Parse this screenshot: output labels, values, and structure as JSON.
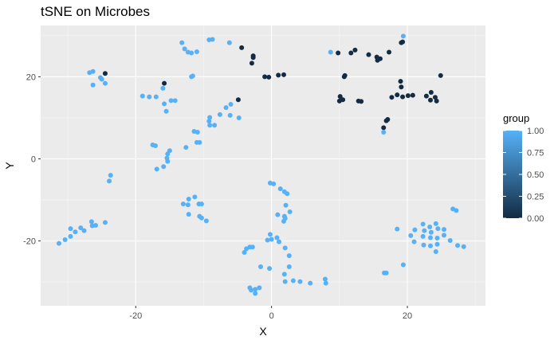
{
  "chart_data": {
    "type": "scatter",
    "title": "tSNE on Microbes",
    "xlabel": "X",
    "ylabel": "Y",
    "xlim": [
      -34,
      31.5
    ],
    "ylim": [
      -35.8,
      32.5
    ],
    "x_ticks": [
      -20,
      0,
      20
    ],
    "y_ticks": [
      -20,
      0,
      20
    ],
    "x_tick_labels": [
      "-20",
      "0",
      "20"
    ],
    "y_tick_labels": [
      "-20",
      "0",
      "20"
    ],
    "grid": true,
    "legend": {
      "title": "group",
      "placement": "right",
      "type": "colorbar",
      "breaks": [
        1.0,
        0.75,
        0.5,
        0.25,
        0.0
      ],
      "labels": [
        "1.00",
        "0.75",
        "0.50",
        "0.25",
        "0.00"
      ],
      "low_color": "#132B43",
      "high_color": "#56B1F7"
    },
    "points": [
      {
        "x": -26.8,
        "y": 21.0,
        "group": 1
      },
      {
        "x": -26.3,
        "y": 21.3,
        "group": 1
      },
      {
        "x": -25.2,
        "y": 19.8,
        "group": 1
      },
      {
        "x": -25.0,
        "y": 19.4,
        "group": 1
      },
      {
        "x": -24.5,
        "y": 20.8,
        "group": 0
      },
      {
        "x": -26.3,
        "y": 18.0,
        "group": 1
      },
      {
        "x": -24.5,
        "y": 18.4,
        "group": 1
      },
      {
        "x": -19.0,
        "y": 15.3,
        "group": 1
      },
      {
        "x": -18.0,
        "y": 15.1,
        "group": 1
      },
      {
        "x": -17.0,
        "y": 15.1,
        "group": 1
      },
      {
        "x": -15.8,
        "y": 18.4,
        "group": 0
      },
      {
        "x": -16.0,
        "y": 17.2,
        "group": 1
      },
      {
        "x": -14.8,
        "y": 14.2,
        "group": 1
      },
      {
        "x": -14.2,
        "y": 14.2,
        "group": 1
      },
      {
        "x": -15.8,
        "y": 13.4,
        "group": 1
      },
      {
        "x": -15.5,
        "y": 11.6,
        "group": 1
      },
      {
        "x": -13.2,
        "y": 28.3,
        "group": 1
      },
      {
        "x": -12.8,
        "y": 26.8,
        "group": 1
      },
      {
        "x": -12.3,
        "y": 26.0,
        "group": 1
      },
      {
        "x": -11.8,
        "y": 25.8,
        "group": 1
      },
      {
        "x": -11.0,
        "y": 26.1,
        "group": 1
      },
      {
        "x": -9.2,
        "y": 29.0,
        "group": 1
      },
      {
        "x": -8.7,
        "y": 29.1,
        "group": 1
      },
      {
        "x": -6.2,
        "y": 28.3,
        "group": 1
      },
      {
        "x": -11.8,
        "y": 20.0,
        "group": 1
      },
      {
        "x": -11.6,
        "y": 20.2,
        "group": 1
      },
      {
        "x": -4.4,
        "y": 27.1,
        "group": 0
      },
      {
        "x": -2.7,
        "y": 25.1,
        "group": 0
      },
      {
        "x": -2.7,
        "y": 24.7,
        "group": 0
      },
      {
        "x": -2.9,
        "y": 23.3,
        "group": 0
      },
      {
        "x": -1.0,
        "y": 20.0,
        "group": 0
      },
      {
        "x": -0.4,
        "y": 19.9,
        "group": 0
      },
      {
        "x": 1.0,
        "y": 20.4,
        "group": 0
      },
      {
        "x": 1.8,
        "y": 20.5,
        "group": 0
      },
      {
        "x": -4.9,
        "y": 14.4,
        "group": 0
      },
      {
        "x": -6.0,
        "y": 13.3,
        "group": 1
      },
      {
        "x": -6.7,
        "y": 12.5,
        "group": 1
      },
      {
        "x": -7.6,
        "y": 10.8,
        "group": 1
      },
      {
        "x": -6.1,
        "y": 10.6,
        "group": 1
      },
      {
        "x": -4.8,
        "y": 10.0,
        "group": 1
      },
      {
        "x": -9.1,
        "y": 10.1,
        "group": 1
      },
      {
        "x": -9.2,
        "y": 9.2,
        "group": 1
      },
      {
        "x": -9.1,
        "y": 8.2,
        "group": 1
      },
      {
        "x": -8.4,
        "y": 8.2,
        "group": 1
      },
      {
        "x": -11.4,
        "y": 6.7,
        "group": 1
      },
      {
        "x": -10.9,
        "y": 6.5,
        "group": 1
      },
      {
        "x": -11.0,
        "y": 4.0,
        "group": 1
      },
      {
        "x": -10.6,
        "y": 4.0,
        "group": 1
      },
      {
        "x": -12.6,
        "y": 2.8,
        "group": 1
      },
      {
        "x": -17.5,
        "y": 3.4,
        "group": 1
      },
      {
        "x": -17.1,
        "y": 3.2,
        "group": 1
      },
      {
        "x": -15.0,
        "y": 2.0,
        "group": 1
      },
      {
        "x": -15.3,
        "y": 1.2,
        "group": 1
      },
      {
        "x": -15.4,
        "y": 0.2,
        "group": 1
      },
      {
        "x": -15.3,
        "y": -0.6,
        "group": 1
      },
      {
        "x": -15.9,
        "y": -1.9,
        "group": 1
      },
      {
        "x": -16.9,
        "y": -2.5,
        "group": 1
      },
      {
        "x": -23.7,
        "y": -4.0,
        "group": 1
      },
      {
        "x": -23.9,
        "y": -5.4,
        "group": 1
      },
      {
        "x": -29.6,
        "y": -17.0,
        "group": 1
      },
      {
        "x": -28.1,
        "y": -16.8,
        "group": 1
      },
      {
        "x": -27.6,
        "y": -17.5,
        "group": 1
      },
      {
        "x": -26.5,
        "y": -15.3,
        "group": 1
      },
      {
        "x": -26.4,
        "y": -16.3,
        "group": 1
      },
      {
        "x": -25.9,
        "y": -16.2,
        "group": 1
      },
      {
        "x": -24.5,
        "y": -15.5,
        "group": 1
      },
      {
        "x": -28.9,
        "y": -17.8,
        "group": 1
      },
      {
        "x": -29.6,
        "y": -18.9,
        "group": 1
      },
      {
        "x": -30.4,
        "y": -19.7,
        "group": 1
      },
      {
        "x": -31.3,
        "y": -20.6,
        "group": 1
      },
      {
        "x": -12.2,
        "y": -9.8,
        "group": 1
      },
      {
        "x": -11.3,
        "y": -9.3,
        "group": 1
      },
      {
        "x": -13.0,
        "y": -11.0,
        "group": 1
      },
      {
        "x": -12.3,
        "y": -11.2,
        "group": 1
      },
      {
        "x": -10.7,
        "y": -11.0,
        "group": 1
      },
      {
        "x": -10.3,
        "y": -11.0,
        "group": 1
      },
      {
        "x": -12.2,
        "y": -13.5,
        "group": 1
      },
      {
        "x": -10.6,
        "y": -14.0,
        "group": 1
      },
      {
        "x": -10.3,
        "y": -14.4,
        "group": 1
      },
      {
        "x": -9.6,
        "y": -15.1,
        "group": 1
      },
      {
        "x": -0.2,
        "y": -5.9,
        "group": 1
      },
      {
        "x": 0.3,
        "y": -6.1,
        "group": 1
      },
      {
        "x": 1.3,
        "y": -7.3,
        "group": 1
      },
      {
        "x": 1.9,
        "y": -8.0,
        "group": 1
      },
      {
        "x": 2.3,
        "y": -8.5,
        "group": 1
      },
      {
        "x": 2.1,
        "y": -11.3,
        "group": 1
      },
      {
        "x": 0.9,
        "y": -13.6,
        "group": 1
      },
      {
        "x": 2.7,
        "y": -12.9,
        "group": 1
      },
      {
        "x": 1.9,
        "y": -14.0,
        "group": 1
      },
      {
        "x": 2.0,
        "y": -14.5,
        "group": 1
      },
      {
        "x": 1.8,
        "y": -15.2,
        "group": 1
      },
      {
        "x": -0.2,
        "y": -18.4,
        "group": 1
      },
      {
        "x": 0.0,
        "y": -19.6,
        "group": 1
      },
      {
        "x": -0.6,
        "y": -19.8,
        "group": 1
      },
      {
        "x": 0.8,
        "y": -19.2,
        "group": 1
      },
      {
        "x": 1.1,
        "y": -20.2,
        "group": 1
      },
      {
        "x": 2.0,
        "y": -21.7,
        "group": 1
      },
      {
        "x": -3.2,
        "y": -21.5,
        "group": 1
      },
      {
        "x": -3.7,
        "y": -21.9,
        "group": 1
      },
      {
        "x": -4.0,
        "y": -22.8,
        "group": 1
      },
      {
        "x": -2.8,
        "y": -21.5,
        "group": 1
      },
      {
        "x": 2.6,
        "y": -23.6,
        "group": 1
      },
      {
        "x": -1.6,
        "y": -26.3,
        "group": 1
      },
      {
        "x": -0.3,
        "y": -26.7,
        "group": 1
      },
      {
        "x": 2.6,
        "y": -26.3,
        "group": 1
      },
      {
        "x": 1.9,
        "y": -28.1,
        "group": 1
      },
      {
        "x": 2.0,
        "y": -29.9,
        "group": 1
      },
      {
        "x": 3.2,
        "y": -29.7,
        "group": 1
      },
      {
        "x": 4.2,
        "y": -29.9,
        "group": 1
      },
      {
        "x": 5.7,
        "y": -30.3,
        "group": 1
      },
      {
        "x": 7.9,
        "y": -29.3,
        "group": 1
      },
      {
        "x": 8.0,
        "y": -30.3,
        "group": 1
      },
      {
        "x": -3.2,
        "y": -31.4,
        "group": 1
      },
      {
        "x": -3.0,
        "y": -32.0,
        "group": 1
      },
      {
        "x": -2.4,
        "y": -32.8,
        "group": 1
      },
      {
        "x": -2.4,
        "y": -31.8,
        "group": 1
      },
      {
        "x": -1.8,
        "y": -31.4,
        "group": 1
      },
      {
        "x": 8.7,
        "y": 26.0,
        "group": 1
      },
      {
        "x": 9.8,
        "y": 25.8,
        "group": 0
      },
      {
        "x": 11.7,
        "y": 25.8,
        "group": 0
      },
      {
        "x": 12.3,
        "y": 26.5,
        "group": 0
      },
      {
        "x": 14.3,
        "y": 25.4,
        "group": 0
      },
      {
        "x": 15.5,
        "y": 24.8,
        "group": 0
      },
      {
        "x": 15.6,
        "y": 24.0,
        "group": 0
      },
      {
        "x": 16.0,
        "y": 24.4,
        "group": 0
      },
      {
        "x": 17.3,
        "y": 26.0,
        "group": 0
      },
      {
        "x": 19.1,
        "y": 28.3,
        "group": 0
      },
      {
        "x": 19.3,
        "y": 28.5,
        "group": 0
      },
      {
        "x": 19.4,
        "y": 29.9,
        "group": 1
      },
      {
        "x": 10.7,
        "y": 20.0,
        "group": 0
      },
      {
        "x": 10.8,
        "y": 20.3,
        "group": 0
      },
      {
        "x": 10.1,
        "y": 15.2,
        "group": 0
      },
      {
        "x": 10.0,
        "y": 14.1,
        "group": 0
      },
      {
        "x": 10.5,
        "y": 14.4,
        "group": 0
      },
      {
        "x": 12.8,
        "y": 14.1,
        "group": 0
      },
      {
        "x": 13.2,
        "y": 14.0,
        "group": 0
      },
      {
        "x": 17.7,
        "y": 15.0,
        "group": 0
      },
      {
        "x": 18.5,
        "y": 15.6,
        "group": 0
      },
      {
        "x": 19.3,
        "y": 15.1,
        "group": 0
      },
      {
        "x": 20.1,
        "y": 15.4,
        "group": 0
      },
      {
        "x": 20.8,
        "y": 15.5,
        "group": 0
      },
      {
        "x": 19.0,
        "y": 18.9,
        "group": 0
      },
      {
        "x": 19.1,
        "y": 17.5,
        "group": 0
      },
      {
        "x": 22.8,
        "y": 15.3,
        "group": 0
      },
      {
        "x": 23.4,
        "y": 14.3,
        "group": 0
      },
      {
        "x": 23.5,
        "y": 16.2,
        "group": 0
      },
      {
        "x": 24.1,
        "y": 15.0,
        "group": 0
      },
      {
        "x": 24.3,
        "y": 14.1,
        "group": 0
      },
      {
        "x": 24.9,
        "y": 20.3,
        "group": 0
      },
      {
        "x": 17.1,
        "y": 9.6,
        "group": 0
      },
      {
        "x": 16.9,
        "y": 9.3,
        "group": 0
      },
      {
        "x": 16.5,
        "y": 7.6,
        "group": 0
      },
      {
        "x": 16.5,
        "y": 6.5,
        "group": 1
      },
      {
        "x": 26.7,
        "y": -12.2,
        "group": 1
      },
      {
        "x": 27.2,
        "y": -12.6,
        "group": 1
      },
      {
        "x": 22.3,
        "y": -15.9,
        "group": 1
      },
      {
        "x": 23.3,
        "y": -16.6,
        "group": 1
      },
      {
        "x": 24.2,
        "y": -15.8,
        "group": 1
      },
      {
        "x": 24.5,
        "y": -17.0,
        "group": 1
      },
      {
        "x": 21.1,
        "y": -17.3,
        "group": 1
      },
      {
        "x": 22.5,
        "y": -17.5,
        "group": 1
      },
      {
        "x": 23.5,
        "y": -17.9,
        "group": 1
      },
      {
        "x": 25.4,
        "y": -17.2,
        "group": 1
      },
      {
        "x": 20.5,
        "y": -18.7,
        "group": 1
      },
      {
        "x": 22.3,
        "y": -18.9,
        "group": 1
      },
      {
        "x": 23.4,
        "y": -19.2,
        "group": 1
      },
      {
        "x": 24.4,
        "y": -19.3,
        "group": 1
      },
      {
        "x": 25.4,
        "y": -18.6,
        "group": 1
      },
      {
        "x": 26.3,
        "y": -19.9,
        "group": 1
      },
      {
        "x": 21.0,
        "y": -20.2,
        "group": 1
      },
      {
        "x": 22.4,
        "y": -21.0,
        "group": 1
      },
      {
        "x": 23.4,
        "y": -21.2,
        "group": 1
      },
      {
        "x": 24.4,
        "y": -20.8,
        "group": 1
      },
      {
        "x": 24.2,
        "y": -22.6,
        "group": 1
      },
      {
        "x": 27.4,
        "y": -21.1,
        "group": 1
      },
      {
        "x": 28.3,
        "y": -21.4,
        "group": 1
      },
      {
        "x": 18.5,
        "y": -17.1,
        "group": 1
      },
      {
        "x": 19.4,
        "y": -25.8,
        "group": 1
      },
      {
        "x": 16.6,
        "y": -27.8,
        "group": 1
      },
      {
        "x": 16.9,
        "y": -27.8,
        "group": 1
      }
    ]
  }
}
